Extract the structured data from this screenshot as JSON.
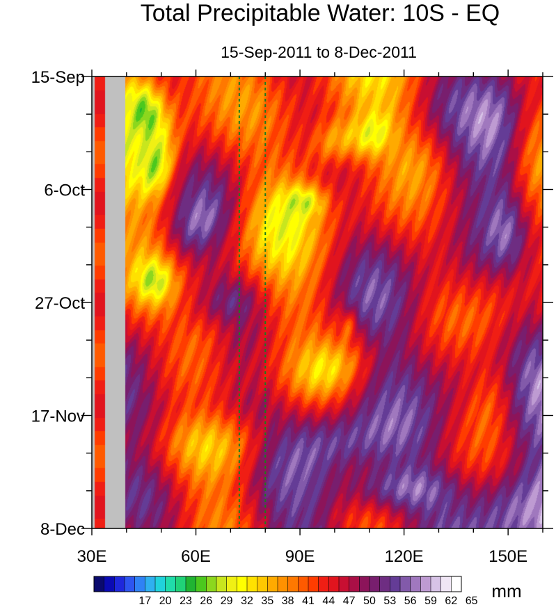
{
  "chart_data": {
    "type": "heatmap",
    "title": "Total Precipitable Water: 10S - EQ",
    "subtitle": "15-Sep-2011 to 8-Dec-2011",
    "xlabel": "",
    "ylabel": "",
    "x_range": [
      30,
      160
    ],
    "x_ticks": [
      {
        "value": 30,
        "label": "30E"
      },
      {
        "value": 60,
        "label": "60E"
      },
      {
        "value": 90,
        "label": "90E"
      },
      {
        "value": 120,
        "label": "120E"
      },
      {
        "value": 150,
        "label": "150E"
      }
    ],
    "y_range_days": [
      0,
      84
    ],
    "y_ticks": [
      {
        "value": 0,
        "label": "15-Sep"
      },
      {
        "value": 21,
        "label": "6-Oct"
      },
      {
        "value": 42,
        "label": "27-Oct"
      },
      {
        "value": 63,
        "label": "17-Nov"
      },
      {
        "value": 84,
        "label": "8-Dec"
      }
    ],
    "colorbar": {
      "units": "mm",
      "labels": [
        "17",
        "20",
        "23",
        "26",
        "29",
        "32",
        "35",
        "38",
        "41",
        "44",
        "47",
        "50",
        "53",
        "56",
        "59",
        "62",
        "65"
      ],
      "colors": [
        "#0a0a6e",
        "#0a0ab4",
        "#1e28dc",
        "#2d55f0",
        "#2f82f5",
        "#2fb0f0",
        "#20d2dc",
        "#20dcaa",
        "#20d278",
        "#20b432",
        "#4bc81e",
        "#8cd71e",
        "#c8e61e",
        "#f0f014",
        "#ffff00",
        "#ffe100",
        "#ffc800",
        "#ffaa00",
        "#ff9100",
        "#ff7800",
        "#ff5a00",
        "#ff3c00",
        "#f01e14",
        "#e1141e",
        "#c80f32",
        "#aa0f46",
        "#8c145a",
        "#781e6e",
        "#6e2d82",
        "#643c96",
        "#825aaa",
        "#a078be",
        "#be9bd2",
        "#d7c3e6",
        "#f0e6f5",
        "#ffffff"
      ]
    },
    "reference_lines_lon": [
      72.5,
      80
    ],
    "value_range_mm": [
      14,
      68
    ],
    "description_fields": {
      "land_mask_lon": [
        30,
        39.5
      ]
    }
  }
}
